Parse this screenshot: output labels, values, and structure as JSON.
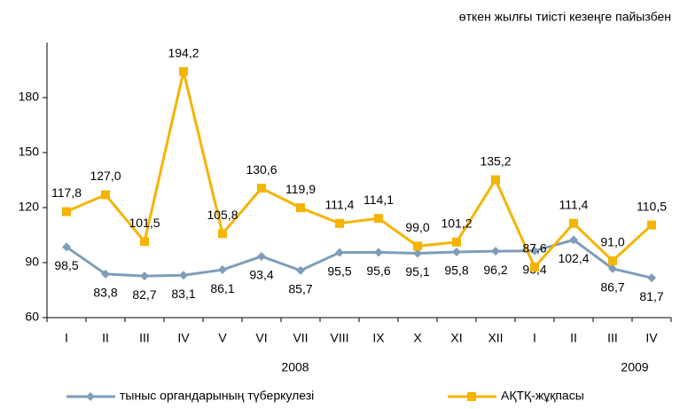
{
  "chart_data": {
    "type": "line",
    "subtitle": "өткен жылғы тиісті кезеңге пайызбен",
    "categories": [
      "I",
      "II",
      "III",
      "IV",
      "V",
      "VI",
      "VII",
      "VIII",
      "IX",
      "X",
      "XI",
      "XII",
      "I",
      "II",
      "III",
      "IV"
    ],
    "annotations": [
      "2008",
      "2009"
    ],
    "series": [
      {
        "name": "тыныс органдарының түберкулезі",
        "color": "#7f9db9",
        "values": [
          98.5,
          83.8,
          82.7,
          83.1,
          86.1,
          93.4,
          85.7,
          95.5,
          95.6,
          95.1,
          95.8,
          96.2,
          96.4,
          102.4,
          86.7,
          81.7
        ],
        "value_labels": [
          "98,5",
          "83,8",
          "82,7",
          "83,1",
          "86,1",
          "93,4",
          "85,7",
          "95,5",
          "95,6",
          "95,1",
          "95,8",
          "96,2",
          "96,4",
          "102,4",
          "86,7",
          "81,7"
        ]
      },
      {
        "name": "АҚТҚ-жұқпасы",
        "color": "#f5b400",
        "values": [
          117.8,
          127.0,
          101.5,
          194.2,
          105.8,
          130.6,
          119.9,
          111.4,
          114.1,
          99.0,
          101.2,
          135.2,
          87.6,
          111.4,
          91.0,
          110.5
        ],
        "value_labels": [
          "117,8",
          "127,0",
          "101,5",
          "194,2",
          "105,8",
          "130,6",
          "119,9",
          "111,4",
          "114,1",
          "99,0",
          "101,2",
          "135,2",
          "87,6",
          "111,4",
          "91,0",
          "110,5"
        ]
      }
    ],
    "ylim": [
      60,
      210
    ],
    "yticks": [
      60,
      90,
      120,
      150,
      180
    ],
    "grid": false
  }
}
